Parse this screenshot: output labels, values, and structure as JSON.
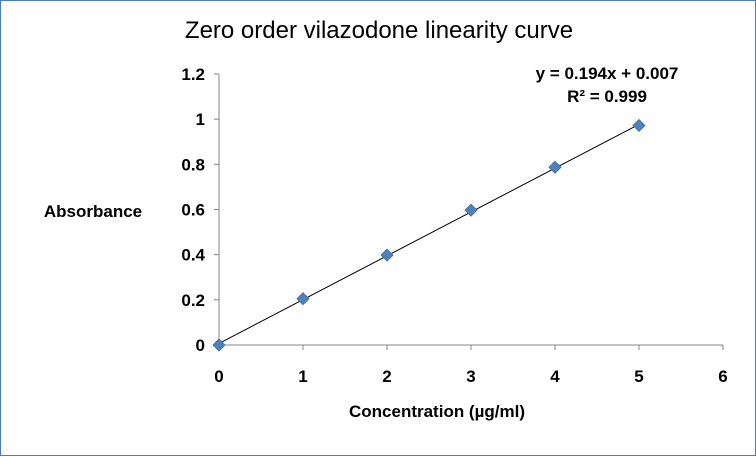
{
  "chart_data": {
    "type": "scatter",
    "title": "Zero order vilazodone linearity curve",
    "xlabel": "Concentration (µg/ml)",
    "ylabel": "Absorbance",
    "xlim": [
      0,
      6
    ],
    "ylim": [
      0,
      1.2
    ],
    "x_ticks": [
      "0",
      "1",
      "2",
      "3",
      "4",
      "5",
      "6"
    ],
    "y_ticks": [
      "0",
      "0.2",
      "0.4",
      "0.6",
      "0.8",
      "1",
      "1.2"
    ],
    "grid": false,
    "legend": "none",
    "series": [
      {
        "marker": "diamond",
        "color": "#4f81bd",
        "x": [
          0,
          1,
          2,
          3,
          4,
          5
        ],
        "y": [
          0,
          0.205,
          0.398,
          0.597,
          0.787,
          0.972
        ]
      }
    ],
    "trendline": {
      "type": "linear",
      "slope": 0.194,
      "intercept": 0.007,
      "color": "#000000",
      "equation": "y = 0.194x + 0.007",
      "r_squared": "R² = 0.999"
    }
  }
}
